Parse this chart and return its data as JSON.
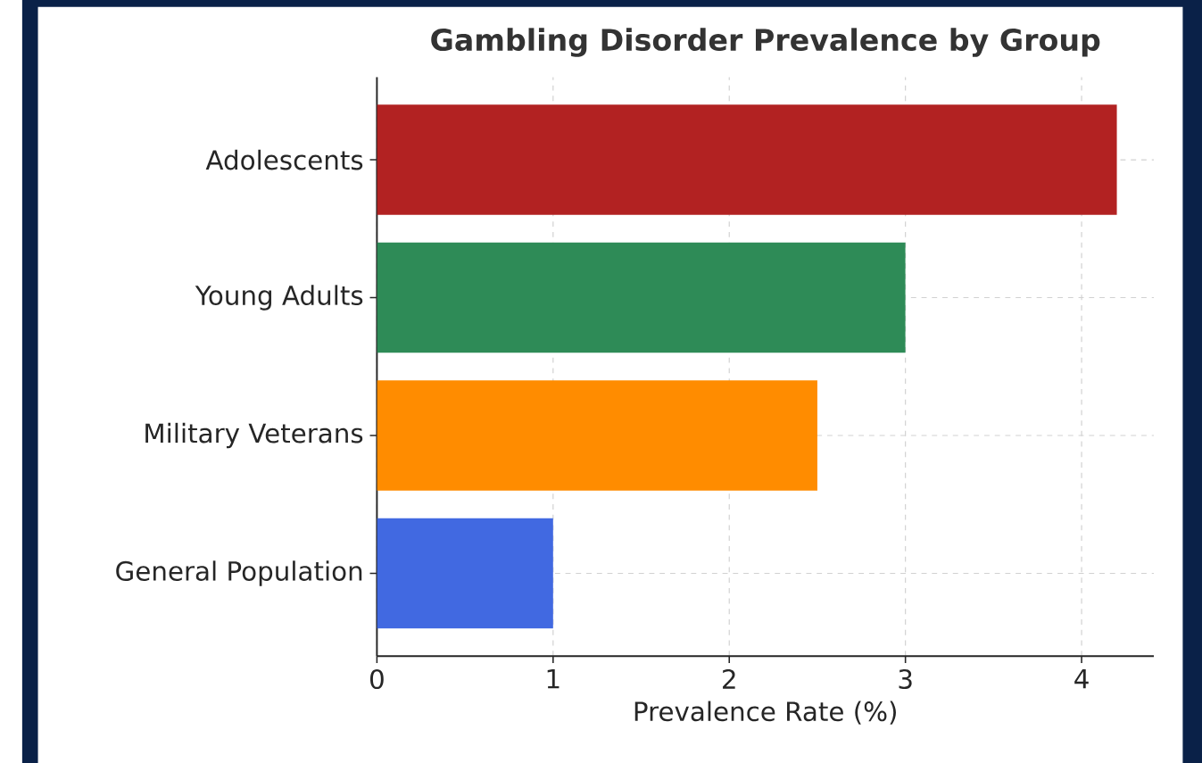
{
  "chart_data": {
    "type": "bar",
    "orientation": "horizontal",
    "title": "Gambling Disorder Prevalence by Group",
    "xlabel": "Prevalence Rate (%)",
    "categories": [
      "Adolescents",
      "Young Adults",
      "Military Veterans",
      "General Population"
    ],
    "values": [
      4.2,
      3.0,
      2.5,
      1.0
    ],
    "colors": [
      "#b22222",
      "#2e8b57",
      "#ff8c00",
      "#4169e1"
    ],
    "xlim": [
      0,
      4.41
    ],
    "xticks": [
      0,
      1,
      2,
      3,
      4
    ],
    "grid": true
  }
}
